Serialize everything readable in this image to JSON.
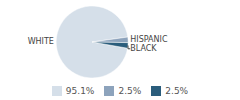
{
  "chart_data": {
    "type": "pie",
    "categories": [
      "WHITE",
      "HISPANIC",
      "BLACK"
    ],
    "values": [
      95.1,
      2.5,
      2.5
    ],
    "value_labels": [
      "95.1%",
      "2.5%",
      "2.5%"
    ],
    "colors": [
      "#d5dfe9",
      "#8da3bc",
      "#2b5d7c"
    ],
    "legend": "bottom"
  }
}
